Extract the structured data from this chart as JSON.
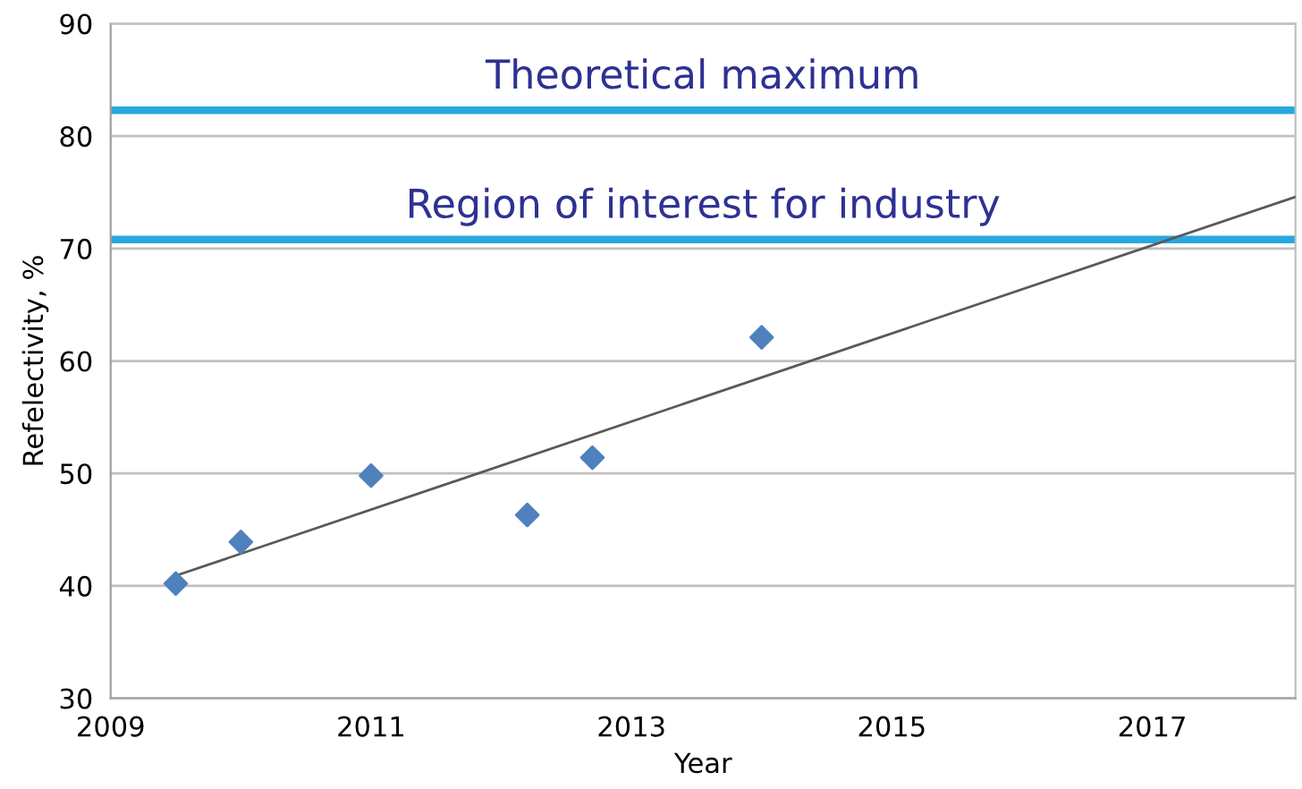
{
  "chart_data": {
    "type": "scatter",
    "xlabel": "Year",
    "ylabel": "Refelectivity, %",
    "xlim": [
      2009,
      2018.1
    ],
    "xticks": [
      2009,
      2011,
      2013,
      2015,
      2017
    ],
    "ylim": [
      30,
      90
    ],
    "yticks": [
      30,
      40,
      50,
      60,
      70,
      80,
      90
    ],
    "grid": "y",
    "legend": false,
    "series": [
      {
        "marker": "diamond",
        "color": "#4f81bd",
        "x": [
          2009.5,
          2010.0,
          2011.0,
          2012.2,
          2012.7,
          2014.0
        ],
        "values": [
          40.2,
          43.9,
          49.8,
          46.3,
          51.4,
          62.1
        ]
      },
      {
        "type": "line",
        "color": "#595959",
        "x": [
          2009.5,
          2018.1
        ],
        "values": [
          40.9,
          74.6
        ]
      }
    ],
    "ref_lines": [
      {
        "axis": "y",
        "value": 82.3,
        "label": "Theoretical maximum",
        "color": "#29a8e0"
      },
      {
        "axis": "y",
        "value": 70.8,
        "label": "Region of interest for industry",
        "color": "#29a8e0"
      }
    ]
  }
}
